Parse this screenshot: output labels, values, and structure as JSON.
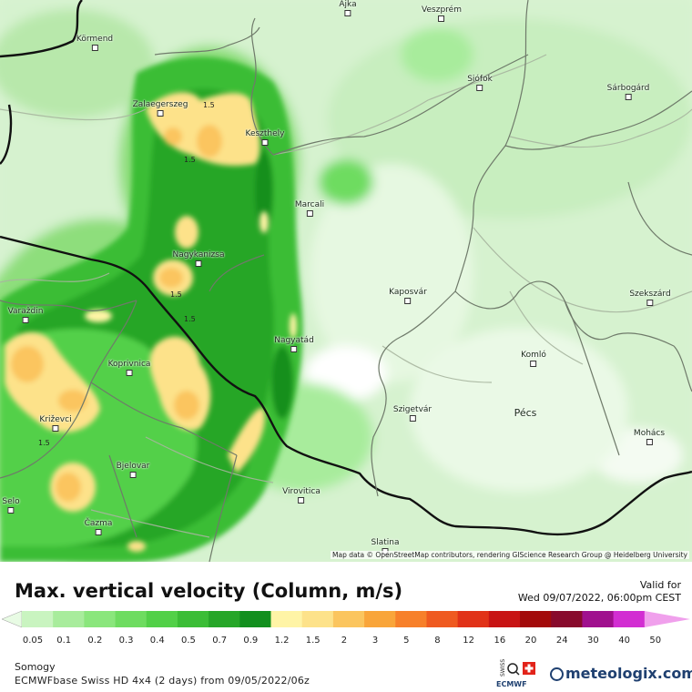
{
  "map": {
    "cities": [
      {
        "name": "Ajka"
      },
      {
        "name": "Veszprém"
      },
      {
        "name": "Körmend"
      },
      {
        "name": "Siófok"
      },
      {
        "name": "Sárbogárd"
      },
      {
        "name": "Zalaegerszeg"
      },
      {
        "name": "Keszthely"
      },
      {
        "name": "Marcali"
      },
      {
        "name": "Nagykanizsa"
      },
      {
        "name": "Kaposvár"
      },
      {
        "name": "Szekszárd"
      },
      {
        "name": "Varaždin"
      },
      {
        "name": "Nagyatád"
      },
      {
        "name": "Koprivnica"
      },
      {
        "name": "Komló"
      },
      {
        "name": "Pécs"
      },
      {
        "name": "Szigetvár"
      },
      {
        "name": "Križevci"
      },
      {
        "name": "Mohács"
      },
      {
        "name": "Bjelovar"
      },
      {
        "name": "Virovitica"
      },
      {
        "name": "Selo"
      },
      {
        "name": "Čazma"
      },
      {
        "name": "Slatina"
      }
    ],
    "contour_labels": [
      "1.5",
      "1.5",
      "1.5",
      "1.5",
      "1.5"
    ],
    "attribution": "Map data © OpenStreetMap contributors, rendering GIScience Research Group @ Heidelberg University"
  },
  "legend": {
    "title": "Max. vertical velocity (Column, m/s)",
    "valid_label": "Valid for",
    "valid_time": "Wed 09/07/2022, 06:00pm CEST",
    "ticks": [
      "0.05",
      "0.1",
      "0.2",
      "0.3",
      "0.4",
      "0.5",
      "0.7",
      "0.9",
      "1.2",
      "1.5",
      "2",
      "3",
      "5",
      "8",
      "12",
      "16",
      "20",
      "24",
      "30",
      "40",
      "50"
    ],
    "colors": [
      "#e8fbe4",
      "#c9f4c0",
      "#a8ec9c",
      "#8ae67c",
      "#6edc60",
      "#52d048",
      "#3bbd36",
      "#26a628",
      "#128f1e",
      "#fff4a6",
      "#fde28a",
      "#fbc55e",
      "#f9a53a",
      "#f7802a",
      "#ef5a20",
      "#e13218",
      "#c81414",
      "#a30a0a",
      "#880a2c",
      "#a0108e",
      "#d22ed2",
      "#f0a0ec"
    ]
  },
  "footer": {
    "region": "Somogy",
    "model": "ECMWFbase Swiss HD 4x4 (2 days) from 09/05/2022/06z",
    "brand": "meteologix.com",
    "badges": [
      "SWISS HD",
      "ECMWF base"
    ]
  }
}
